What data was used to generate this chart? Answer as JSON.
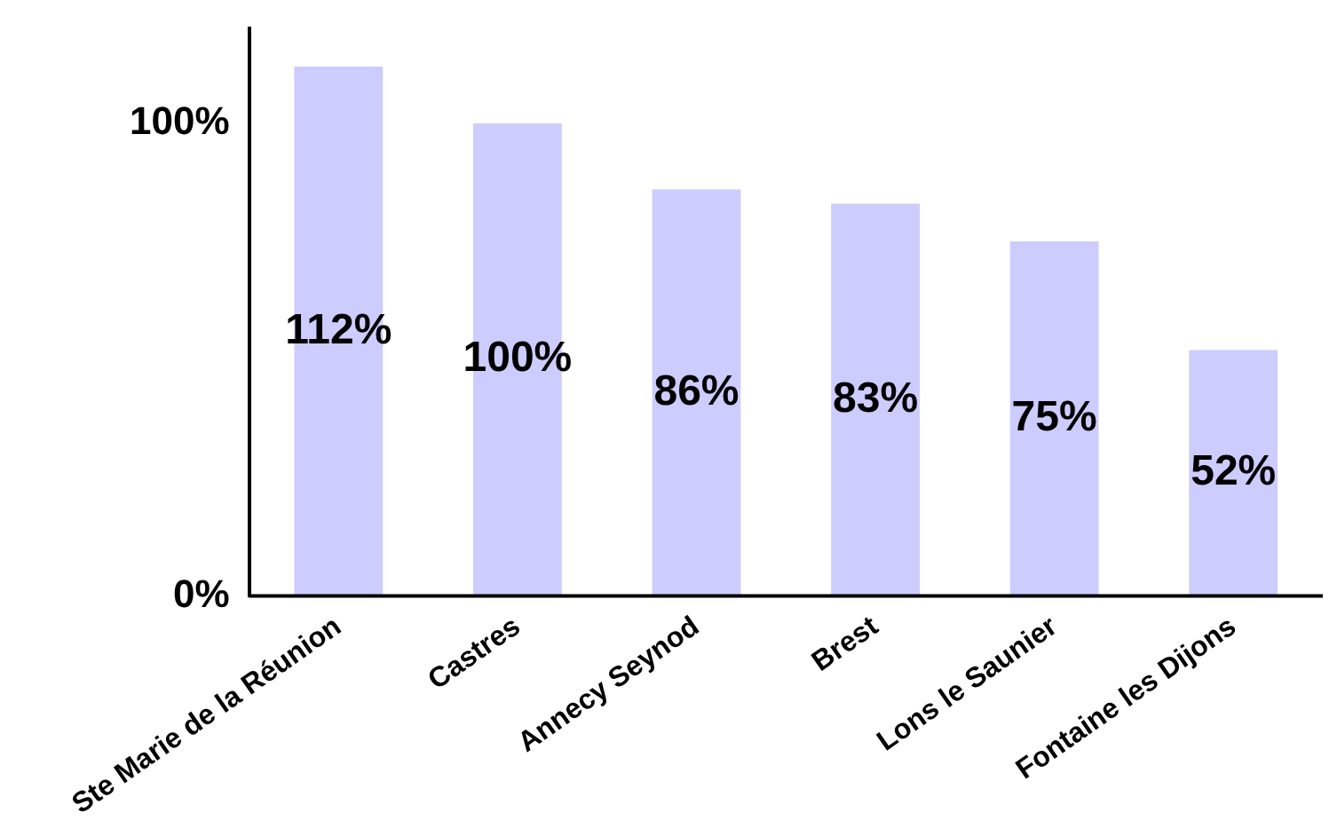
{
  "chart_data": {
    "type": "bar",
    "categories": [
      "Ste Marie de la Réunion",
      "Castres",
      "Annecy Seynod",
      "Brest",
      "Lons le Saunier",
      "Fontaine les Dijons"
    ],
    "values": [
      112,
      100,
      86,
      83,
      75,
      52
    ],
    "color": "#ccccff",
    "ylim": [
      0,
      120
    ],
    "yticks": [
      {
        "value": 0,
        "label": "0%"
      },
      {
        "value": 100,
        "label": "100%"
      }
    ],
    "value_labels": [
      "112%",
      "100%",
      "86%",
      "83%",
      "75%",
      "52%"
    ],
    "grid": false,
    "legend": false
  }
}
